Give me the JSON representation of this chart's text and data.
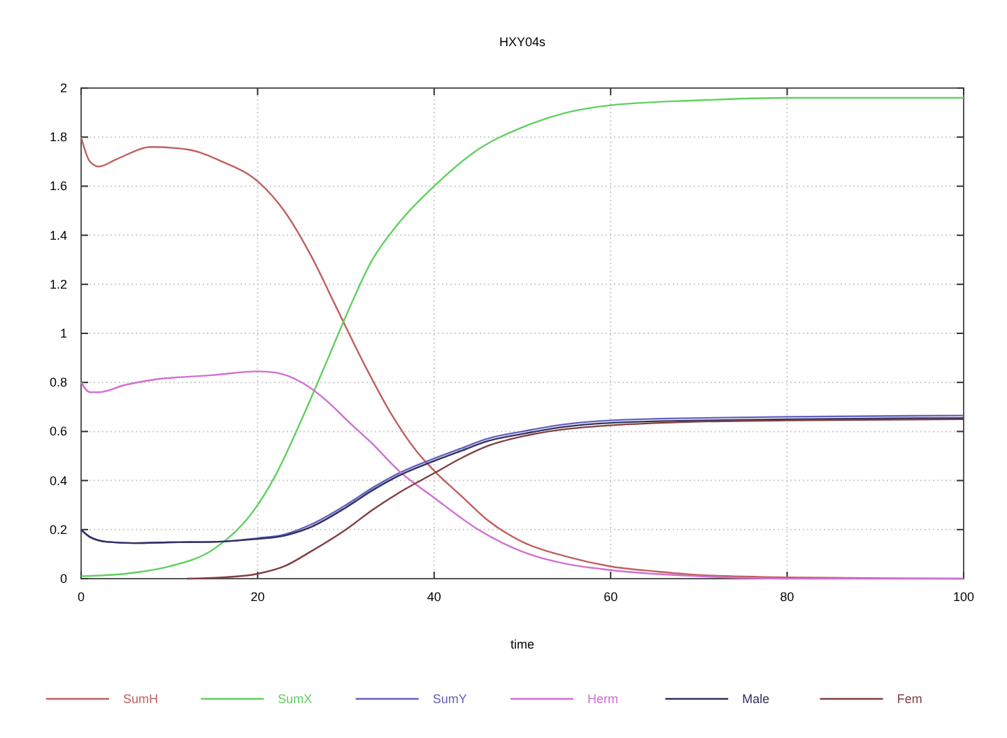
{
  "chart_data": {
    "type": "line",
    "title": "HXY04s",
    "xlabel": "time",
    "xlim": [
      0,
      100
    ],
    "ylim": [
      0,
      2
    ],
    "xticks": [
      0,
      20,
      40,
      60,
      80,
      100
    ],
    "yticks": [
      0,
      0.2,
      0.4,
      0.6,
      0.8,
      1,
      1.2,
      1.4,
      1.6,
      1.8,
      2
    ],
    "grid": true,
    "legend": "bottom",
    "marker": "none",
    "line_style": "solid",
    "series": [
      {
        "name": "SumH",
        "color": "#c06060",
        "x": [
          0,
          1,
          2,
          4,
          8,
          12,
          16,
          20,
          23,
          26,
          29,
          32,
          35,
          38,
          40,
          43,
          46,
          50,
          55,
          60,
          65,
          70,
          80,
          100
        ],
        "values": [
          1.8,
          1.7,
          1.68,
          1.71,
          1.76,
          1.75,
          1.7,
          1.62,
          1.5,
          1.32,
          1.1,
          0.88,
          0.68,
          0.52,
          0.44,
          0.34,
          0.24,
          0.15,
          0.09,
          0.05,
          0.03,
          0.015,
          0.005,
          0
        ]
      },
      {
        "name": "SumX",
        "color": "#60d060",
        "x": [
          0,
          5,
          10,
          15,
          20,
          22,
          25,
          28,
          30,
          33,
          36,
          40,
          45,
          50,
          55,
          60,
          70,
          80,
          100
        ],
        "values": [
          0.01,
          0.02,
          0.05,
          0.12,
          0.3,
          0.42,
          0.65,
          0.9,
          1.07,
          1.3,
          1.45,
          1.6,
          1.75,
          1.84,
          1.9,
          1.93,
          1.95,
          1.96,
          1.96
        ]
      },
      {
        "name": "SumY",
        "color": "#6060c0",
        "x": [
          0,
          1,
          3,
          6,
          10,
          15,
          20,
          23,
          26,
          30,
          33,
          36,
          40,
          43,
          46,
          50,
          55,
          60,
          70,
          80,
          100
        ],
        "values": [
          0.2,
          0.17,
          0.15,
          0.145,
          0.148,
          0.15,
          0.165,
          0.18,
          0.22,
          0.3,
          0.37,
          0.43,
          0.49,
          0.53,
          0.57,
          0.6,
          0.63,
          0.645,
          0.655,
          0.66,
          0.665
        ]
      },
      {
        "name": "Herm",
        "color": "#d070d0",
        "x": [
          0,
          1,
          2,
          5,
          8,
          15,
          20,
          22,
          25,
          28,
          30,
          33,
          36,
          40,
          45,
          50,
          55,
          60,
          70,
          80,
          100
        ],
        "values": [
          0.8,
          0.76,
          0.76,
          0.79,
          0.81,
          0.83,
          0.845,
          0.84,
          0.8,
          0.72,
          0.65,
          0.55,
          0.44,
          0.33,
          0.2,
          0.11,
          0.06,
          0.035,
          0.01,
          0,
          0
        ]
      },
      {
        "name": "Male",
        "color": "#303060",
        "x": [
          0,
          1,
          3,
          6,
          10,
          15,
          20,
          23,
          26,
          30,
          33,
          36,
          40,
          43,
          46,
          50,
          55,
          60,
          70,
          80,
          100
        ],
        "values": [
          0.2,
          0.17,
          0.15,
          0.145,
          0.148,
          0.15,
          0.162,
          0.175,
          0.21,
          0.29,
          0.36,
          0.42,
          0.48,
          0.52,
          0.56,
          0.59,
          0.62,
          0.635,
          0.645,
          0.65,
          0.655
        ]
      },
      {
        "name": "Fem",
        "color": "#804040",
        "x": [
          12,
          16,
          20,
          23,
          26,
          30,
          33,
          36,
          40,
          43,
          46,
          50,
          55,
          60,
          70,
          80,
          100
        ],
        "values": [
          0,
          0.005,
          0.02,
          0.05,
          0.11,
          0.2,
          0.28,
          0.35,
          0.43,
          0.49,
          0.54,
          0.58,
          0.61,
          0.625,
          0.64,
          0.645,
          0.65
        ]
      }
    ]
  }
}
